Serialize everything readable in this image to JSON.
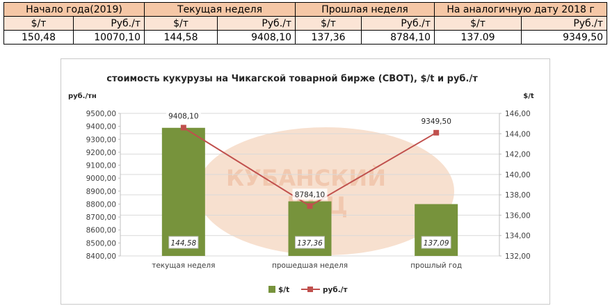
{
  "table": {
    "headers": [
      "Начало года(2019)",
      "Текущая неделя",
      "Прошлая неделя",
      "На аналогичную дату 2018 г"
    ],
    "units": [
      "$/т",
      "Руб./т",
      "$/т",
      "Руб./т",
      "$/т",
      "Руб./т",
      "$/т",
      "Руб./т"
    ],
    "values": [
      "150,48",
      "10070,10",
      "144,58",
      "9408,10",
      "137,36",
      "8784,10",
      "137.09",
      "9349,50"
    ]
  },
  "watermark": {
    "line1": "КУБАНСКИЙ",
    "line2": "ИКЦ"
  },
  "chart_data": {
    "type": "bar",
    "title": "стоимость кукурузы на Чикагской товарной бирже (CBOT), $/t и руб./т",
    "categories": [
      "текущая неделя",
      "прошедшая неделя",
      "прошлый год"
    ],
    "left_axis": {
      "label": "руб./тн",
      "min": 8400,
      "max": 9500,
      "step": 100,
      "ticks": [
        "8400,00",
        "8500,00",
        "8600,00",
        "8700,00",
        "8800,00",
        "8900,00",
        "9000,00",
        "9100,00",
        "9200,00",
        "9300,00",
        "9400,00",
        "9500,00"
      ]
    },
    "right_axis": {
      "label": "$/t",
      "min": 132,
      "max": 146,
      "step": 2,
      "ticks": [
        "132,00",
        "134,00",
        "136,00",
        "138,00",
        "140,00",
        "142,00",
        "144,00",
        "146,00"
      ]
    },
    "series": [
      {
        "name": "$/t",
        "type": "bar",
        "axis": "right",
        "color": "#77933c",
        "values": [
          144.58,
          137.36,
          137.09
        ],
        "labels": [
          "144,58",
          "137,36",
          "137,09"
        ]
      },
      {
        "name": "руб./т",
        "type": "line",
        "axis": "right",
        "color": "#c0504d",
        "values": [
          144.6,
          136.9,
          144.1
        ],
        "labels": [
          "9408,10",
          "8784,10",
          "9349,50"
        ]
      }
    ],
    "legend_position": "bottom",
    "grid": true
  }
}
